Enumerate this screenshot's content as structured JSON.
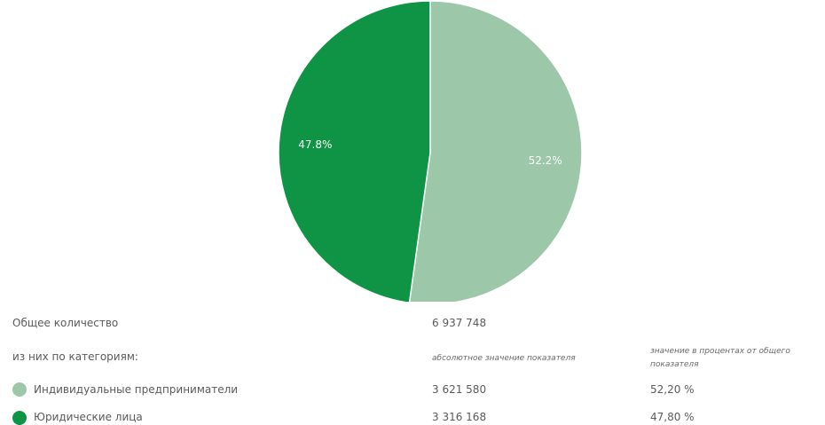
{
  "chart_data": {
    "type": "pie",
    "categories": [
      "Индивидуальные предприниматели",
      "Юридические лица"
    ],
    "values": [
      52.2,
      47.8
    ],
    "labels": [
      "52.2%",
      "47.8%"
    ],
    "colors": [
      "#9cc7a8",
      "#0e9444"
    ]
  },
  "table": {
    "total_label": "Общее количество",
    "total_value": "6 937 748",
    "by_category_label": "из них по категориям:",
    "col_abs_header": "абсолютное значение показателя",
    "col_pct_header": "значение в процентах от общего показателя",
    "rows": [
      {
        "label": "Индивидуальные предприниматели",
        "abs": "3 621 580",
        "pct": "52,20 %",
        "color": "#9cc7a8"
      },
      {
        "label": "Юридические лица",
        "abs": "3 316 168",
        "pct": "47,80 %",
        "color": "#0e9444"
      }
    ]
  }
}
